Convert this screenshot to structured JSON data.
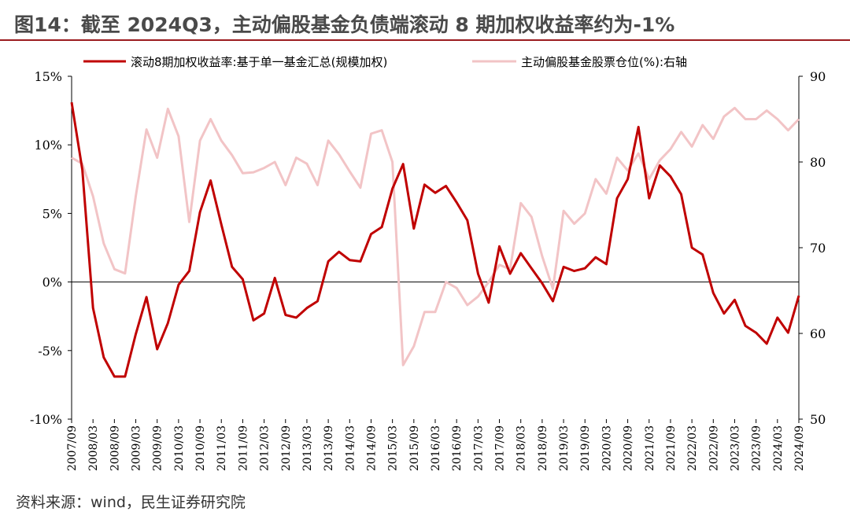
{
  "header": {
    "title": "图14：截至 2024Q3，主动偏股基金负债端滚动 8 期加权收益率约为-1%"
  },
  "footer": {
    "source": "资料来源：wind，民生证券研究院"
  },
  "colors": {
    "series_return": "#c00000",
    "series_position": "#f2c4c6",
    "title_rule": "#9b1b1f",
    "axis": "#000000"
  },
  "chart_data": {
    "type": "line",
    "x": [
      "2007/09",
      "2007/12",
      "2008/03",
      "2008/06",
      "2008/09",
      "2008/12",
      "2009/03",
      "2009/06",
      "2009/09",
      "2009/12",
      "2010/03",
      "2010/06",
      "2010/09",
      "2010/12",
      "2011/03",
      "2011/06",
      "2011/09",
      "2011/12",
      "2012/03",
      "2012/06",
      "2012/09",
      "2012/12",
      "2013/03",
      "2013/06",
      "2013/09",
      "2013/12",
      "2014/03",
      "2014/06",
      "2014/09",
      "2014/12",
      "2015/03",
      "2015/06",
      "2015/09",
      "2015/12",
      "2016/03",
      "2016/06",
      "2016/09",
      "2016/12",
      "2017/03",
      "2017/06",
      "2017/09",
      "2017/12",
      "2018/03",
      "2018/06",
      "2018/09",
      "2018/12",
      "2019/03",
      "2019/06",
      "2019/09",
      "2019/12",
      "2020/03",
      "2020/06",
      "2020/09",
      "2020/12",
      "2021/03",
      "2021/06",
      "2021/09",
      "2021/12",
      "2022/03",
      "2022/06",
      "2022/09",
      "2022/12",
      "2023/03",
      "2023/06",
      "2023/09",
      "2023/12",
      "2024/03",
      "2024/06",
      "2024/09"
    ],
    "x_tick_labels": [
      "2007/09",
      "2008/03",
      "2008/09",
      "2009/03",
      "2009/09",
      "2010/03",
      "2010/09",
      "2011/03",
      "2011/09",
      "2012/03",
      "2012/09",
      "2013/03",
      "2013/09",
      "2014/03",
      "2014/09",
      "2015/03",
      "2015/09",
      "2016/03",
      "2016/09",
      "2017/03",
      "2017/09",
      "2018/03",
      "2018/09",
      "2019/03",
      "2019/09",
      "2020/03",
      "2020/09",
      "2021/03",
      "2021/09",
      "2022/03",
      "2022/09",
      "2023/03",
      "2023/09",
      "2024/03",
      "2024/09"
    ],
    "series": [
      {
        "name": "滚动8期加权收益率:基于单一基金汇总(规模加权)",
        "axis": "left",
        "values": [
          13.1,
          8.2,
          -1.9,
          -5.5,
          -6.9,
          -6.9,
          -3.8,
          -1.1,
          -4.9,
          -3.0,
          -0.2,
          0.8,
          5.1,
          7.4,
          4.2,
          1.1,
          0.2,
          -2.8,
          -2.3,
          0.3,
          -2.4,
          -2.6,
          -1.9,
          -1.4,
          1.5,
          2.2,
          1.6,
          1.5,
          3.5,
          4.0,
          6.8,
          8.6,
          3.9,
          7.1,
          6.5,
          7.0,
          5.8,
          4.5,
          0.6,
          -1.5,
          2.6,
          0.6,
          2.1,
          1.0,
          -0.1,
          -1.4,
          1.1,
          0.8,
          1.0,
          1.8,
          1.3,
          6.1,
          7.5,
          11.3,
          6.1,
          8.5,
          7.7,
          6.4,
          2.5,
          2.0,
          -0.8,
          -2.3,
          -1.3,
          -3.2,
          -3.7,
          -4.5,
          -2.6,
          -3.7,
          -1.0
        ]
      },
      {
        "name": "主动偏股基金股票仓位(%):右轴",
        "axis": "right",
        "values": [
          80.5,
          79.8,
          76.0,
          70.5,
          67.5,
          67.0,
          76.0,
          83.8,
          80.5,
          86.2,
          83.0,
          73.0,
          82.5,
          85.0,
          82.5,
          80.8,
          78.7,
          78.8,
          79.3,
          80.0,
          77.3,
          80.5,
          79.8,
          77.3,
          82.5,
          80.9,
          78.9,
          77.0,
          83.3,
          83.7,
          80.0,
          56.3,
          58.5,
          62.5,
          62.5,
          66.0,
          65.3,
          63.3,
          64.3,
          66.0,
          68.0,
          67.5,
          75.2,
          73.6,
          69.0,
          65.2,
          74.3,
          72.8,
          74.0,
          78.0,
          76.3,
          80.5,
          79.0,
          81.0,
          78.0,
          80.2,
          81.5,
          83.5,
          81.8,
          84.3,
          82.7,
          85.3,
          86.3,
          85.0,
          85.0,
          86.0,
          85.0,
          83.7,
          85.0
        ]
      }
    ],
    "y_left": {
      "min": -10,
      "max": 15,
      "ticks": [
        "-10%",
        "-5%",
        "0%",
        "5%",
        "10%",
        "15%"
      ],
      "tick_values": [
        -10,
        -5,
        0,
        5,
        10,
        15
      ]
    },
    "y_right": {
      "min": 50,
      "max": 90,
      "ticks": [
        "50",
        "60",
        "70",
        "80",
        "90"
      ],
      "tick_values": [
        50,
        60,
        70,
        80,
        90
      ]
    },
    "grid": false,
    "legend_position": "top"
  }
}
